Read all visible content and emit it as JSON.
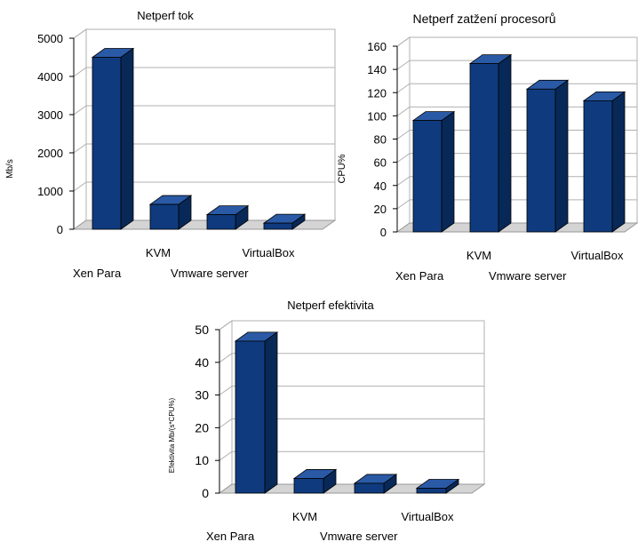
{
  "colors": {
    "bar_front": "#0f3b7e",
    "bar_top": "#2a5aa6",
    "bar_side": "#082958",
    "floor": "#d4d4d4",
    "grid": "#b0b0b0",
    "wall": "#ffffff"
  },
  "chart_data": [
    {
      "type": "bar",
      "title": "Netperf tok",
      "ylabel": "Mb/s",
      "xlabel": "",
      "categories": [
        "Xen Para",
        "KVM",
        "Vmware server",
        "VirtualBox"
      ],
      "values": [
        4500,
        650,
        380,
        160
      ],
      "ylim": [
        0,
        5000
      ],
      "yticks": [
        0,
        1000,
        2000,
        3000,
        4000,
        5000
      ],
      "grid": true
    },
    {
      "type": "bar",
      "title": "Netperf zatžení procesorů",
      "ylabel": "CPU%",
      "xlabel": "",
      "categories": [
        "Xen Para",
        "KVM",
        "Vmware server",
        "VirtualBox"
      ],
      "values": [
        96,
        145,
        123,
        113
      ],
      "ylim": [
        0,
        160
      ],
      "yticks": [
        0,
        20,
        40,
        60,
        80,
        100,
        120,
        140,
        160
      ],
      "grid": true
    },
    {
      "type": "bar",
      "title": "Netperf efektivita",
      "ylabel": "Efektivita Mb/(s*CPU%)",
      "xlabel": "",
      "categories": [
        "Xen Para",
        "KVM",
        "Vmware server",
        "VirtualBox"
      ],
      "values": [
        46.5,
        4.5,
        3,
        1.5
      ],
      "ylim": [
        0,
        50
      ],
      "yticks": [
        0,
        10,
        20,
        30,
        40,
        50
      ],
      "grid": true
    }
  ]
}
